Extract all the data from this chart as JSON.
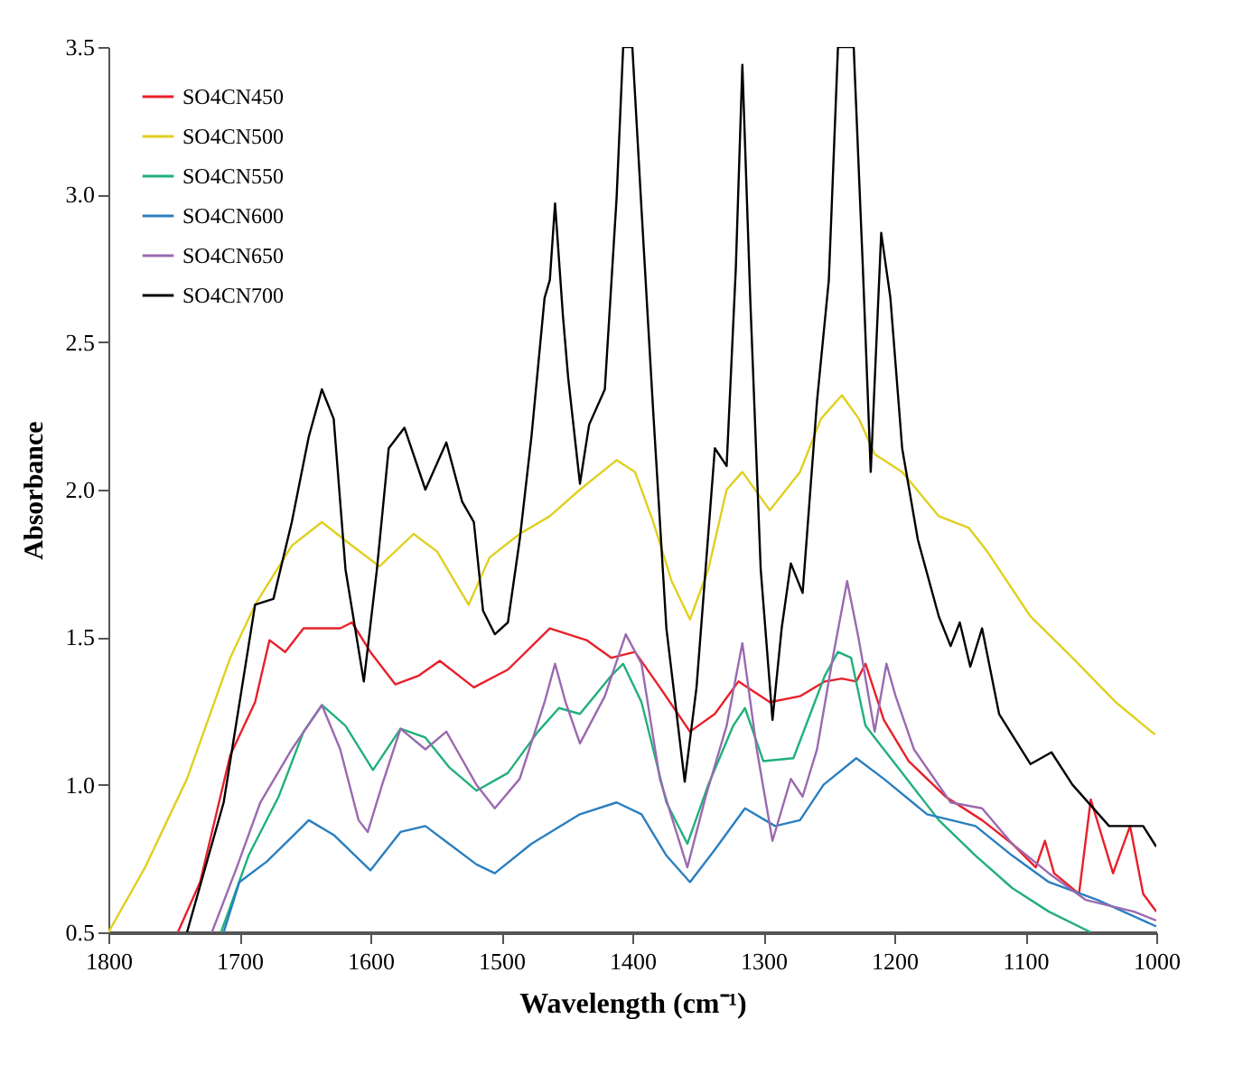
{
  "chart_data": {
    "type": "line",
    "xlabel": "Wavelength (cm⁻¹)",
    "ylabel": "Absorbance",
    "xlim": [
      1800,
      1000
    ],
    "xticks": [
      1800,
      1700,
      1600,
      1500,
      1400,
      1300,
      1200,
      1100,
      1000
    ],
    "ylim": [
      0.5,
      3.5
    ],
    "yticks": [
      0.5,
      {
        "value": 1,
        "label": "1.0"
      },
      1.5,
      {
        "value": 2,
        "label": "2.0"
      },
      2.5,
      {
        "value": 3,
        "label": "3.0"
      },
      3.5
    ],
    "grid": false,
    "legend": "top left",
    "line_style": "solid",
    "marker": "none",
    "series": [
      {
        "name": "SO4CN450",
        "color": "#e8202a",
        "x": [
          1747,
          1730,
          1707,
          1688,
          1677,
          1665,
          1651,
          1623,
          1614,
          1600,
          1581,
          1563,
          1547,
          1521,
          1495,
          1463,
          1435,
          1416,
          1398,
          1379,
          1356,
          1337,
          1319,
          1295,
          1272,
          1253,
          1240,
          1229,
          1222,
          1208,
          1189,
          1161,
          1133,
          1110,
          1092,
          1085,
          1078,
          1059,
          1050,
          1033,
          1020,
          1010,
          1000
        ],
        "values": [
          0.5,
          0.67,
          1.1,
          1.28,
          1.49,
          1.45,
          1.53,
          1.53,
          1.55,
          1.45,
          1.34,
          1.37,
          1.42,
          1.33,
          1.39,
          1.53,
          1.49,
          1.43,
          1.45,
          1.33,
          1.18,
          1.24,
          1.35,
          1.28,
          1.3,
          1.35,
          1.36,
          1.35,
          1.41,
          1.22,
          1.08,
          0.96,
          0.88,
          0.8,
          0.72,
          0.81,
          0.7,
          0.63,
          0.95,
          0.7,
          0.86,
          0.63,
          0.57
        ]
      },
      {
        "name": "SO4CN500",
        "color": "#e0d020",
        "x": [
          1800,
          1772,
          1740,
          1707,
          1688,
          1660,
          1637,
          1614,
          1593,
          1567,
          1549,
          1525,
          1509,
          1486,
          1463,
          1440,
          1412,
          1398,
          1384,
          1370,
          1356,
          1342,
          1328,
          1316,
          1295,
          1272,
          1256,
          1240,
          1227,
          1215,
          1194,
          1166,
          1143,
          1129,
          1096,
          1064,
          1031,
          1001
        ],
        "values": [
          0.5,
          0.72,
          1.02,
          1.43,
          1.61,
          1.81,
          1.89,
          1.81,
          1.74,
          1.85,
          1.79,
          1.61,
          1.77,
          1.85,
          1.91,
          2.0,
          2.1,
          2.06,
          1.89,
          1.69,
          1.56,
          1.73,
          2.0,
          2.06,
          1.93,
          2.06,
          2.24,
          2.32,
          2.24,
          2.12,
          2.06,
          1.91,
          1.87,
          1.79,
          1.57,
          1.43,
          1.28,
          1.17
        ]
      },
      {
        "name": "SO4CN550",
        "color": "#20b07a",
        "x": [
          1714,
          1693,
          1670,
          1651,
          1637,
          1619,
          1598,
          1577,
          1558,
          1540,
          1519,
          1495,
          1472,
          1456,
          1440,
          1416,
          1407,
          1393,
          1374,
          1358,
          1342,
          1323,
          1314,
          1300,
          1277,
          1253,
          1243,
          1233,
          1222,
          1208,
          1194,
          1166,
          1138,
          1110,
          1082,
          1050
        ],
        "values": [
          0.5,
          0.76,
          0.96,
          1.18,
          1.27,
          1.2,
          1.05,
          1.19,
          1.16,
          1.06,
          0.98,
          1.04,
          1.18,
          1.26,
          1.24,
          1.37,
          1.41,
          1.28,
          0.94,
          0.8,
          1.0,
          1.2,
          1.26,
          1.08,
          1.09,
          1.37,
          1.45,
          1.43,
          1.2,
          1.12,
          1.04,
          0.88,
          0.76,
          0.65,
          0.57,
          0.5
        ]
      },
      {
        "name": "SO4CN600",
        "color": "#2a7fc0",
        "x": [
          1712,
          1700,
          1679,
          1656,
          1647,
          1628,
          1600,
          1577,
          1558,
          1540,
          1519,
          1505,
          1477,
          1440,
          1412,
          1393,
          1374,
          1356,
          1337,
          1314,
          1291,
          1272,
          1254,
          1229,
          1208,
          1175,
          1138,
          1110,
          1082,
          1045,
          1000
        ],
        "values": [
          0.5,
          0.67,
          0.74,
          0.84,
          0.88,
          0.83,
          0.71,
          0.84,
          0.86,
          0.8,
          0.73,
          0.7,
          0.8,
          0.9,
          0.94,
          0.9,
          0.76,
          0.67,
          0.78,
          0.92,
          0.86,
          0.88,
          1.0,
          1.09,
          1.02,
          0.9,
          0.86,
          0.76,
          0.67,
          0.61,
          0.52
        ]
      },
      {
        "name": "SO4CN650",
        "color": "#9a6ab0",
        "x": [
          1721,
          1702,
          1684,
          1660,
          1637,
          1623,
          1609,
          1602,
          1591,
          1577,
          1558,
          1542,
          1519,
          1505,
          1486,
          1467,
          1459,
          1451,
          1440,
          1421,
          1405,
          1393,
          1379,
          1358,
          1344,
          1328,
          1316,
          1305,
          1293,
          1279,
          1270,
          1259,
          1247,
          1236,
          1227,
          1215,
          1206,
          1199,
          1185,
          1157,
          1133,
          1110,
          1082,
          1054,
          1017,
          1000
        ],
        "values": [
          0.5,
          0.72,
          0.94,
          1.12,
          1.27,
          1.12,
          0.88,
          0.84,
          1.0,
          1.19,
          1.12,
          1.18,
          1.0,
          0.92,
          1.02,
          1.28,
          1.41,
          1.28,
          1.14,
          1.3,
          1.51,
          1.41,
          1.02,
          0.72,
          0.96,
          1.2,
          1.48,
          1.12,
          0.81,
          1.02,
          0.96,
          1.12,
          1.43,
          1.69,
          1.49,
          1.18,
          1.41,
          1.3,
          1.12,
          0.94,
          0.92,
          0.8,
          0.7,
          0.61,
          0.57,
          0.54
        ]
      },
      {
        "name": "SO4CN700",
        "color": "#000000",
        "x": [
          1740,
          1712,
          1688,
          1674,
          1660,
          1647,
          1637,
          1628,
          1619,
          1605,
          1595,
          1586,
          1574,
          1558,
          1542,
          1530,
          1521,
          1514,
          1505,
          1495,
          1486,
          1477,
          1467,
          1463,
          1459,
          1453,
          1449,
          1440,
          1433,
          1421,
          1412,
          1407,
          1400,
          1393,
          1384,
          1374,
          1360,
          1351,
          1337,
          1328,
          1321,
          1316,
          1310,
          1302,
          1293,
          1286,
          1279,
          1270,
          1259,
          1250,
          1243,
          1231,
          1224,
          1218,
          1210,
          1203,
          1194,
          1182,
          1166,
          1157,
          1150,
          1142,
          1133,
          1120,
          1096,
          1080,
          1064,
          1036,
          1010,
          1000
        ],
        "values": [
          0.5,
          0.94,
          1.61,
          1.63,
          1.89,
          2.18,
          2.34,
          2.24,
          1.73,
          1.35,
          1.73,
          2.14,
          2.21,
          2.0,
          2.16,
          1.96,
          1.89,
          1.59,
          1.51,
          1.55,
          1.83,
          2.18,
          2.65,
          2.71,
          2.97,
          2.59,
          2.38,
          2.02,
          2.22,
          2.34,
          2.99,
          3.5,
          3.5,
          2.95,
          2.26,
          1.53,
          1.01,
          1.33,
          2.14,
          2.08,
          2.75,
          3.44,
          2.65,
          1.73,
          1.22,
          1.53,
          1.75,
          1.65,
          2.3,
          2.71,
          3.5,
          3.5,
          2.75,
          2.06,
          2.87,
          2.65,
          2.14,
          1.83,
          1.57,
          1.47,
          1.55,
          1.4,
          1.53,
          1.24,
          1.07,
          1.11,
          1.0,
          0.86,
          0.86,
          0.79
        ]
      }
    ]
  }
}
